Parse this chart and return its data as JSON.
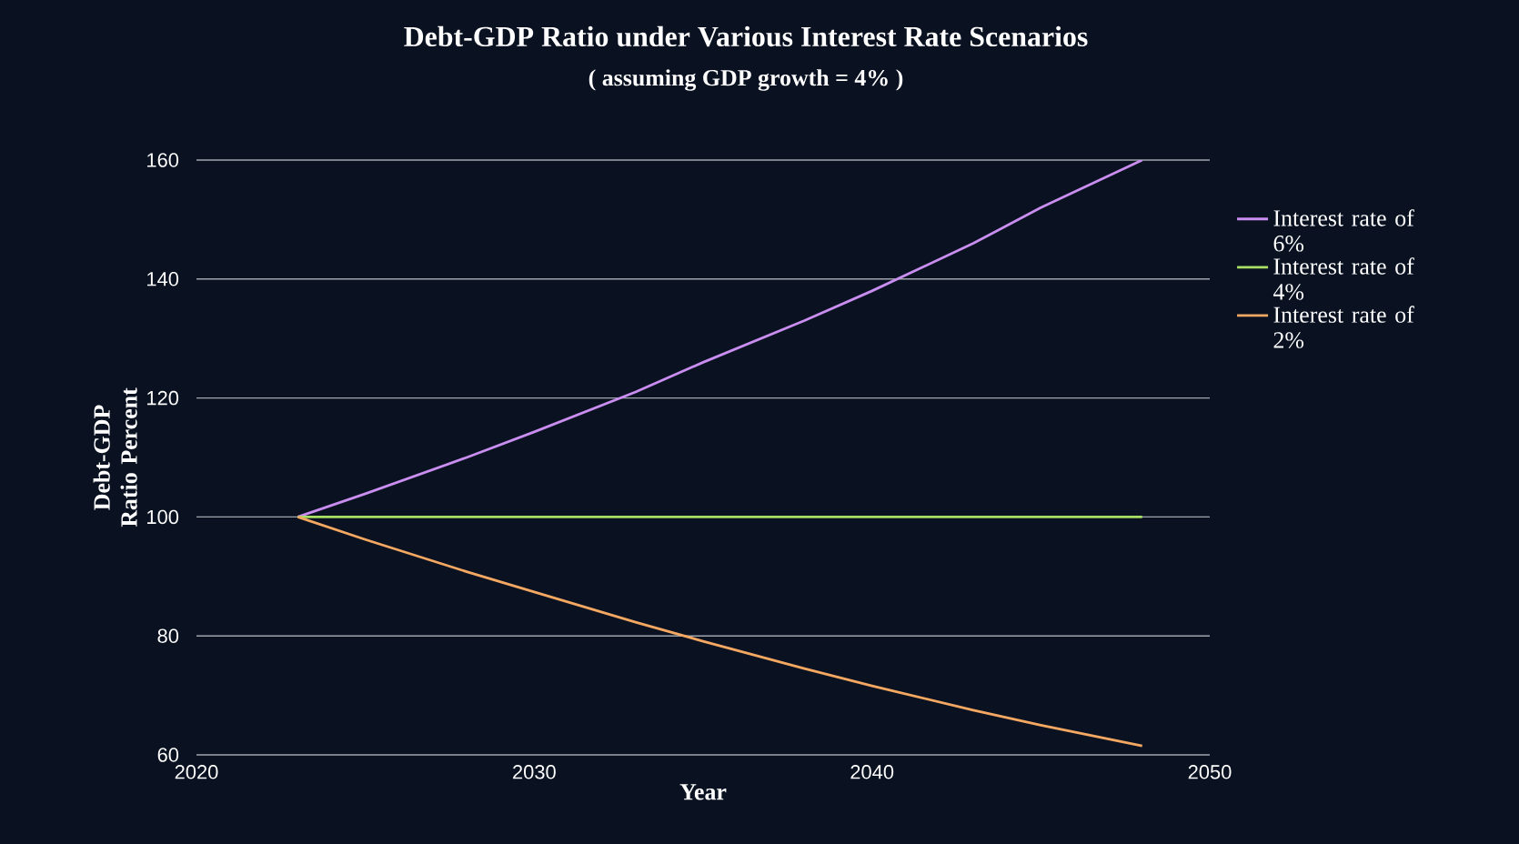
{
  "chart_data": {
    "type": "line",
    "title": "Debt-GDP Ratio under Various Interest Rate Scenarios",
    "subtitle": "( assuming GDP growth = 4% )",
    "xlabel": "Year",
    "ylabel": "Debt-GDP Ratio Percent",
    "xlim": [
      2020,
      2050
    ],
    "xticks": [
      2020,
      2030,
      2040,
      2050
    ],
    "ylim": [
      60,
      160
    ],
    "yticks": [
      60,
      80,
      100,
      120,
      140,
      160
    ],
    "grid": "y",
    "legend": "right",
    "series": [
      {
        "name": "Interest rate of 6%",
        "color": "#c98ef0",
        "x": [
          2023,
          2025,
          2028,
          2030,
          2033,
          2035,
          2038,
          2040,
          2043,
          2045,
          2048
        ],
        "values": [
          100,
          103.9,
          110,
          114.3,
          121,
          126,
          133,
          138,
          146,
          152,
          160
        ]
      },
      {
        "name": "Interest rate of 4%",
        "color": "#a8e063",
        "x": [
          2023,
          2048
        ],
        "values": [
          100,
          100
        ]
      },
      {
        "name": "Interest rate of 2%",
        "color": "#f5a862",
        "x": [
          2023,
          2025,
          2028,
          2030,
          2033,
          2035,
          2038,
          2040,
          2043,
          2045,
          2048
        ],
        "values": [
          100,
          96.2,
          90.8,
          87.4,
          82.3,
          79.1,
          74.5,
          71.6,
          67.5,
          65,
          61.5
        ]
      }
    ]
  }
}
